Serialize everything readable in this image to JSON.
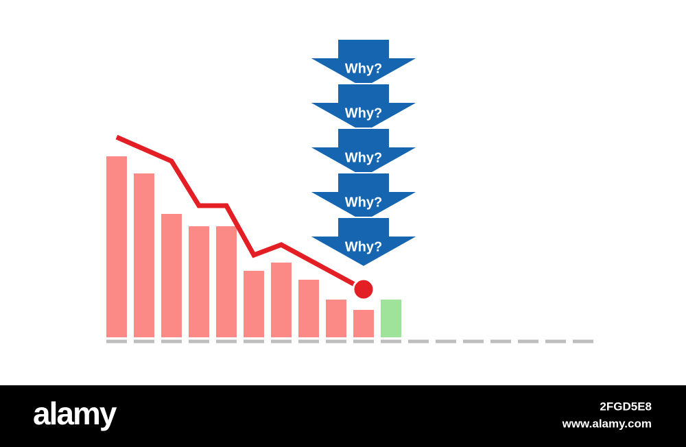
{
  "chart_data": {
    "type": "bar",
    "categories": [
      null,
      null,
      null,
      null,
      null,
      null,
      null,
      null,
      null,
      null,
      null
    ],
    "values": [
      264,
      239,
      180,
      162,
      162,
      97,
      109,
      84,
      55,
      40,
      55
    ],
    "colors": [
      "#fb8a87",
      "#fb8a87",
      "#fb8a87",
      "#fb8a87",
      "#fb8a87",
      "#fb8a87",
      "#fb8a87",
      "#fb8a87",
      "#fb8a87",
      "#fb8a87",
      "#9fe39b"
    ],
    "line": {
      "color": "#e31e24",
      "x": [
        0,
        2,
        3,
        4,
        5,
        6,
        9
      ],
      "values": [
        292,
        257,
        192,
        192,
        120,
        135,
        70
      ]
    },
    "ylim": [
      0,
      300
    ],
    "annotations": [
      "Why?",
      "Why?",
      "Why?",
      "Why?",
      "Why?"
    ]
  },
  "footer": {
    "brand": "alamy",
    "image_id": "2FGD5E8",
    "url": "www.alamy.com"
  }
}
